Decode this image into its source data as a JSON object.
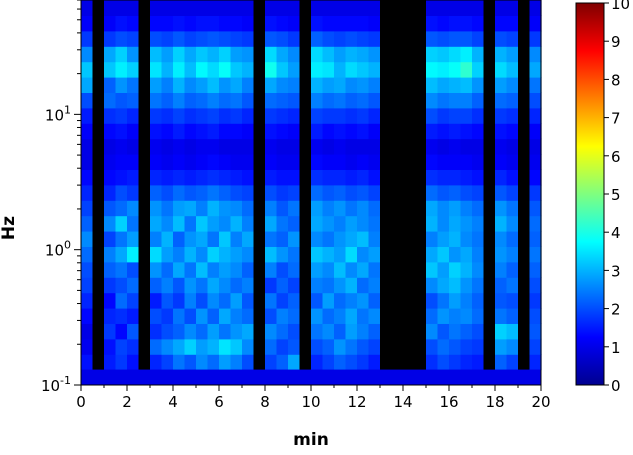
{
  "chart_data": {
    "type": "heatmap",
    "title": "",
    "xlabel": "min",
    "ylabel": "Hz",
    "xlim": [
      0,
      20
    ],
    "ylim": [
      0.1,
      70
    ],
    "y_scale": "log",
    "x_ticks": [
      "0",
      "2",
      "4",
      "6",
      "8",
      "10",
      "12",
      "14",
      "16",
      "18",
      "20"
    ],
    "y_ticks": [
      {
        "value": 0.1,
        "base": "10",
        "exp": "-1"
      },
      {
        "value": 1,
        "base": "10",
        "exp": "0"
      },
      {
        "value": 10,
        "base": "10",
        "exp": "1"
      }
    ],
    "colorbar": {
      "min": 0,
      "max": 10,
      "ticks": [
        "0",
        "1",
        "2",
        "3",
        "4",
        "5",
        "6",
        "7",
        "8",
        "9",
        "10"
      ],
      "colormap": "jet"
    },
    "x_step_min": 0.5,
    "columns": [
      {
        "x": 0.0,
        "values": [
          1.4,
          1.1,
          1.0,
          1.3,
          1.6,
          1.9,
          2.0,
          2.3,
          2.6,
          2.2,
          1.9,
          1.6,
          1.3,
          1.0,
          1.0,
          1.2,
          1.5,
          2.0,
          2.9,
          3.2,
          2.6,
          1.8,
          1.2,
          1.0
        ]
      },
      {
        "x": 0.5,
        "values": [
          0,
          0,
          0,
          0,
          0,
          0,
          0,
          0,
          0,
          0,
          0,
          0,
          0,
          0,
          0,
          0,
          0,
          0,
          0,
          0,
          0,
          0,
          0,
          0
        ]
      },
      {
        "x": 1.0,
        "values": [
          1.5,
          1.4,
          1.8,
          1.6,
          1.3,
          1.8,
          2.2,
          2.5,
          1.9,
          2.6,
          2.1,
          1.6,
          1.3,
          1.1,
          1.0,
          1.3,
          1.7,
          2.3,
          2.2,
          3.2,
          2.9,
          1.8,
          1.2,
          1.0
        ]
      },
      {
        "x": 1.5,
        "values": [
          1.8,
          1.9,
          1.3,
          1.7,
          2.3,
          2.0,
          2.4,
          2.9,
          2.4,
          3.3,
          2.3,
          2.0,
          1.4,
          1.2,
          1.1,
          1.4,
          1.8,
          2.1,
          2.7,
          3.6,
          3.3,
          2.0,
          1.4,
          1.0
        ]
      },
      {
        "x": 2.0,
        "values": [
          1.4,
          1.7,
          2.1,
          1.5,
          1.9,
          2.3,
          2.0,
          3.6,
          2.8,
          2.4,
          2.6,
          1.8,
          1.5,
          1.2,
          1.0,
          1.2,
          1.6,
          2.2,
          2.4,
          3.3,
          2.7,
          1.9,
          1.3,
          1.0
        ]
      },
      {
        "x": 2.5,
        "values": [
          0,
          0,
          0,
          0,
          0,
          0,
          0,
          0,
          0,
          0,
          0,
          0,
          0,
          0,
          0,
          0,
          0,
          0,
          0,
          0,
          0,
          0,
          0,
          0
        ]
      },
      {
        "x": 3.0,
        "values": [
          1.6,
          2.3,
          1.7,
          2.0,
          1.5,
          2.2,
          2.7,
          3.4,
          2.5,
          2.9,
          2.7,
          2.2,
          1.6,
          1.2,
          1.1,
          1.4,
          1.8,
          2.4,
          2.8,
          3.5,
          3.1,
          2.0,
          1.3,
          1.0
        ]
      },
      {
        "x": 3.5,
        "values": [
          1.9,
          2.6,
          2.0,
          1.8,
          2.1,
          2.5,
          2.3,
          2.8,
          3.0,
          2.6,
          2.4,
          2.0,
          1.5,
          1.1,
          1.0,
          1.3,
          1.7,
          2.2,
          2.5,
          3.0,
          2.8,
          1.9,
          1.3,
          1.0
        ]
      },
      {
        "x": 4.0,
        "values": [
          2.4,
          2.9,
          2.2,
          2.4,
          1.8,
          2.1,
          2.9,
          2.5,
          2.2,
          3.1,
          2.8,
          2.3,
          1.6,
          1.2,
          1.1,
          1.5,
          1.9,
          2.5,
          3.0,
          3.6,
          3.3,
          2.1,
          1.4,
          1.0
        ]
      },
      {
        "x": 4.5,
        "values": [
          2.1,
          3.3,
          2.6,
          2.0,
          2.5,
          2.7,
          2.4,
          3.0,
          2.7,
          2.4,
          2.9,
          2.1,
          1.5,
          1.1,
          1.0,
          1.3,
          1.7,
          2.2,
          2.6,
          3.1,
          2.9,
          1.9,
          1.3,
          1.0
        ]
      },
      {
        "x": 5.0,
        "values": [
          2.6,
          2.8,
          2.3,
          2.7,
          2.0,
          2.4,
          3.1,
          2.6,
          2.9,
          3.2,
          2.5,
          2.2,
          1.6,
          1.2,
          1.1,
          1.4,
          1.8,
          2.3,
          2.8,
          3.7,
          3.2,
          2.0,
          1.4,
          1.0
        ]
      },
      {
        "x": 5.5,
        "values": [
          2.3,
          3.0,
          2.8,
          2.2,
          2.6,
          2.9,
          2.5,
          3.3,
          2.4,
          2.8,
          3.0,
          2.4,
          1.7,
          1.3,
          1.1,
          1.5,
          1.9,
          2.5,
          3.1,
          3.4,
          3.0,
          2.1,
          1.4,
          1.0
        ]
      },
      {
        "x": 6.0,
        "values": [
          2.8,
          3.5,
          2.4,
          2.9,
          2.3,
          2.6,
          2.8,
          3.0,
          3.2,
          2.6,
          2.7,
          2.2,
          1.6,
          1.2,
          1.0,
          1.3,
          1.7,
          2.3,
          2.7,
          3.8,
          3.3,
          2.0,
          1.3,
          1.0
        ]
      },
      {
        "x": 6.5,
        "values": [
          2.5,
          3.2,
          2.7,
          2.5,
          2.8,
          2.3,
          2.6,
          2.8,
          2.5,
          3.0,
          2.6,
          2.0,
          1.5,
          1.1,
          1.0,
          1.3,
          1.8,
          2.4,
          2.9,
          3.2,
          2.8,
          1.9,
          1.3,
          1.0
        ]
      },
      {
        "x": 7.0,
        "values": [
          2.0,
          2.6,
          2.9,
          2.3,
          2.1,
          2.5,
          2.2,
          2.6,
          2.9,
          2.5,
          2.3,
          1.9,
          1.4,
          1.1,
          1.0,
          1.2,
          1.6,
          2.1,
          2.5,
          3.0,
          2.7,
          1.8,
          1.2,
          1.0
        ]
      },
      {
        "x": 7.5,
        "values": [
          0,
          0,
          0,
          0,
          0,
          0,
          0,
          0,
          0,
          0,
          0,
          0,
          0,
          0,
          0,
          0,
          0,
          0,
          0,
          0,
          0,
          0,
          0,
          0
        ]
      },
      {
        "x": 8.0,
        "values": [
          1.9,
          2.3,
          2.6,
          2.0,
          2.4,
          1.8,
          2.5,
          3.1,
          2.4,
          2.9,
          2.5,
          2.0,
          1.5,
          1.2,
          1.1,
          1.4,
          1.8,
          2.3,
          2.9,
          3.9,
          3.4,
          2.1,
          1.4,
          1.0
        ]
      },
      {
        "x": 8.5,
        "values": [
          2.2,
          1.9,
          2.3,
          2.5,
          1.9,
          2.2,
          2.0,
          2.7,
          2.2,
          2.4,
          2.1,
          1.8,
          1.4,
          1.1,
          1.0,
          1.3,
          1.7,
          2.2,
          2.6,
          3.2,
          2.9,
          2.0,
          1.3,
          1.0
        ]
      },
      {
        "x": 9.0,
        "values": [
          2.9,
          2.1,
          2.0,
          2.3,
          2.2,
          1.9,
          2.3,
          2.4,
          2.7,
          2.2,
          2.4,
          1.9,
          1.4,
          1.1,
          1.0,
          1.2,
          1.6,
          2.1,
          2.5,
          2.8,
          2.6,
          1.8,
          1.2,
          1.0
        ]
      },
      {
        "x": 9.5,
        "values": [
          0,
          0,
          0,
          0,
          0,
          0,
          0,
          0,
          0,
          0,
          0,
          0,
          0,
          0,
          0,
          0,
          0,
          0,
          0,
          0,
          0,
          0,
          0,
          0
        ]
      },
      {
        "x": 10.0,
        "values": [
          1.6,
          2.0,
          2.4,
          2.7,
          2.1,
          2.5,
          2.8,
          3.2,
          2.6,
          2.9,
          2.8,
          2.3,
          1.7,
          1.3,
          1.1,
          1.5,
          1.9,
          2.5,
          3.0,
          3.6,
          3.4,
          2.2,
          1.4,
          1.0
        ]
      },
      {
        "x": 10.5,
        "values": [
          1.9,
          2.2,
          2.6,
          2.3,
          2.8,
          2.4,
          2.6,
          3.0,
          2.4,
          2.7,
          2.5,
          2.1,
          1.6,
          1.2,
          1.0,
          1.3,
          1.8,
          2.3,
          2.8,
          3.5,
          3.1,
          2.0,
          1.3,
          1.0
        ]
      },
      {
        "x": 11.0,
        "values": [
          2.2,
          2.7,
          2.2,
          2.5,
          2.3,
          2.7,
          3.1,
          2.8,
          2.7,
          2.5,
          2.7,
          2.2,
          1.6,
          1.2,
          1.1,
          1.4,
          1.8,
          2.4,
          2.9,
          3.0,
          2.8,
          1.9,
          1.3,
          1.0
        ]
      },
      {
        "x": 11.5,
        "values": [
          2.0,
          2.4,
          2.8,
          2.9,
          2.5,
          3.0,
          2.6,
          3.4,
          2.9,
          2.8,
          2.4,
          2.0,
          1.5,
          1.1,
          1.0,
          1.3,
          1.7,
          2.2,
          2.6,
          3.4,
          3.0,
          2.0,
          1.3,
          1.0
        ]
      },
      {
        "x": 12.0,
        "values": [
          1.8,
          2.1,
          2.5,
          2.4,
          2.7,
          2.3,
          2.9,
          2.6,
          3.1,
          2.6,
          2.6,
          2.1,
          1.6,
          1.2,
          1.0,
          1.4,
          1.8,
          2.3,
          2.7,
          3.2,
          2.9,
          1.9,
          1.3,
          1.0
        ]
      },
      {
        "x": 12.5,
        "values": [
          1.5,
          1.9,
          2.2,
          2.6,
          2.2,
          2.5,
          2.4,
          2.8,
          2.5,
          2.4,
          2.3,
          1.9,
          1.4,
          1.1,
          1.0,
          1.2,
          1.6,
          2.1,
          2.5,
          3.0,
          2.7,
          1.8,
          1.2,
          1.0
        ]
      },
      {
        "x": 13.0,
        "values": [
          0,
          0,
          0,
          0,
          0,
          0,
          0,
          0,
          0,
          0,
          0,
          0,
          0,
          0,
          0,
          0,
          0,
          0,
          0,
          0,
          0,
          0,
          0,
          0
        ]
      },
      {
        "x": 13.5,
        "values": [
          0,
          0,
          0,
          0,
          0,
          0,
          0,
          0,
          0,
          0,
          0,
          0,
          0,
          0,
          0,
          0,
          0,
          0,
          0,
          0,
          0,
          0,
          0,
          0
        ]
      },
      {
        "x": 14.0,
        "values": [
          0,
          0,
          0,
          0,
          0,
          0,
          0,
          0,
          0,
          0,
          0,
          0,
          0,
          0,
          0,
          0,
          0,
          0,
          0,
          0,
          0,
          0,
          0,
          0
        ]
      },
      {
        "x": 14.5,
        "values": [
          0,
          0,
          0,
          0,
          0,
          0,
          0,
          0,
          0,
          0,
          0,
          0,
          0,
          0,
          0,
          0,
          0,
          0,
          0,
          0,
          0,
          0,
          0,
          0
        ]
      },
      {
        "x": 15.0,
        "values": [
          1.7,
          2.0,
          2.6,
          2.3,
          2.0,
          2.6,
          3.2,
          2.9,
          2.5,
          3.0,
          2.9,
          2.3,
          1.7,
          1.3,
          1.1,
          1.5,
          2.0,
          2.6,
          3.1,
          3.7,
          3.3,
          2.1,
          1.4,
          1.0
        ]
      },
      {
        "x": 15.5,
        "values": [
          2.0,
          2.3,
          2.1,
          2.7,
          2.4,
          2.9,
          2.8,
          3.2,
          2.8,
          2.6,
          2.6,
          2.1,
          1.6,
          1.2,
          1.0,
          1.4,
          1.8,
          2.4,
          2.9,
          3.6,
          3.2,
          2.0,
          1.3,
          1.0
        ]
      },
      {
        "x": 16.0,
        "values": [
          1.8,
          2.1,
          2.4,
          2.5,
          2.8,
          3.1,
          3.3,
          2.7,
          3.0,
          2.9,
          2.8,
          2.2,
          1.6,
          1.2,
          1.1,
          1.5,
          1.9,
          2.5,
          3.0,
          3.8,
          3.4,
          2.1,
          1.4,
          1.0
        ]
      },
      {
        "x": 16.5,
        "values": [
          1.6,
          1.9,
          2.2,
          2.6,
          2.5,
          2.7,
          3.0,
          2.9,
          2.6,
          2.7,
          2.5,
          2.0,
          1.5,
          1.2,
          1.0,
          1.4,
          1.9,
          2.5,
          3.1,
          4.2,
          3.6,
          2.1,
          1.4,
          1.0
        ]
      },
      {
        "x": 17.0,
        "values": [
          1.5,
          1.8,
          2.0,
          2.3,
          2.2,
          2.4,
          2.6,
          2.5,
          2.4,
          2.5,
          2.3,
          1.9,
          1.4,
          1.1,
          1.0,
          1.3,
          1.7,
          2.2,
          2.7,
          3.3,
          3.0,
          1.9,
          1.3,
          1.0
        ]
      },
      {
        "x": 17.5,
        "values": [
          0,
          0,
          0,
          0,
          0,
          0,
          0,
          0,
          0,
          0,
          0,
          0,
          0,
          0,
          0,
          0,
          0,
          0,
          0,
          0,
          0,
          0,
          0,
          0
        ]
      },
      {
        "x": 18.0,
        "values": [
          2.2,
          2.8,
          3.3,
          2.4,
          2.1,
          2.2,
          2.5,
          2.7,
          2.6,
          3.0,
          2.7,
          2.1,
          1.6,
          1.2,
          1.1,
          1.4,
          1.8,
          2.3,
          2.8,
          3.4,
          3.0,
          2.0,
          1.3,
          1.0
        ]
      },
      {
        "x": 18.5,
        "values": [
          1.9,
          2.6,
          3.1,
          2.2,
          2.0,
          2.4,
          2.2,
          2.5,
          2.3,
          2.6,
          2.4,
          1.9,
          1.4,
          1.1,
          1.0,
          1.3,
          1.7,
          2.2,
          2.6,
          3.1,
          2.8,
          1.9,
          1.3,
          1.0
        ]
      },
      {
        "x": 19.0,
        "values": [
          0,
          0,
          0,
          0,
          0,
          0,
          0,
          0,
          0,
          0,
          0,
          0,
          0,
          0,
          0,
          0,
          0,
          0,
          0,
          0,
          0,
          0,
          0,
          0
        ]
      },
      {
        "x": 19.5,
        "values": [
          1.6,
          1.9,
          2.1,
          2.0,
          1.8,
          2.0,
          2.2,
          2.4,
          2.2,
          2.3,
          2.1,
          1.8,
          1.3,
          1.1,
          1.0,
          1.2,
          1.6,
          2.0,
          2.4,
          2.9,
          2.6,
          1.8,
          1.2,
          1.0
        ]
      }
    ],
    "bottom_band": {
      "y_range": [
        0.1,
        0.13
      ],
      "value": 1.0
    }
  }
}
